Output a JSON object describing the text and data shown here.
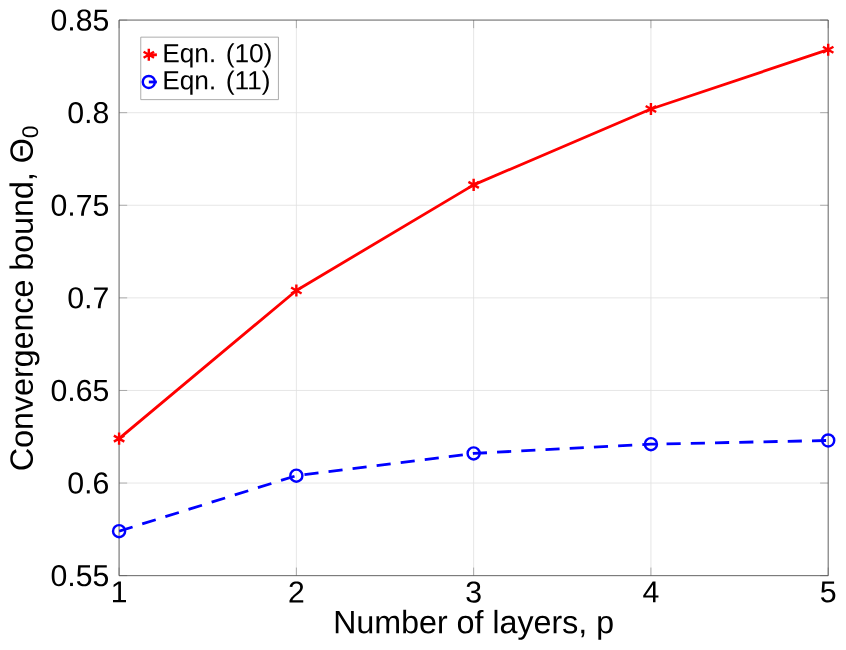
{
  "chart_data": {
    "type": "line",
    "xlabel": "Number of layers, p",
    "ylabel": "Convergence bound, Θ$_{0}$",
    "x": [
      1,
      2,
      3,
      4,
      5
    ],
    "series": [
      {
        "name": "Eqn. (10)",
        "color": "#ff0000",
        "values": [
          0.624,
          0.704,
          0.761,
          0.802,
          0.834
        ],
        "marker": "cross",
        "line_style": "solid"
      },
      {
        "name": "Eqn. (11)",
        "color": "#0000ff",
        "values": [
          0.574,
          0.604,
          0.616,
          0.621,
          0.623
        ],
        "marker": "circle",
        "line_style": "dashed"
      }
    ],
    "xlim": [
      1,
      5
    ],
    "xticks": [
      1,
      2,
      3,
      4,
      5
    ],
    "ylim": [
      0.55,
      0.85
    ],
    "yticks": [
      0.55,
      0.6,
      0.65,
      0.7,
      0.75,
      0.8,
      0.85
    ],
    "grid": true,
    "legend": "top left"
  }
}
